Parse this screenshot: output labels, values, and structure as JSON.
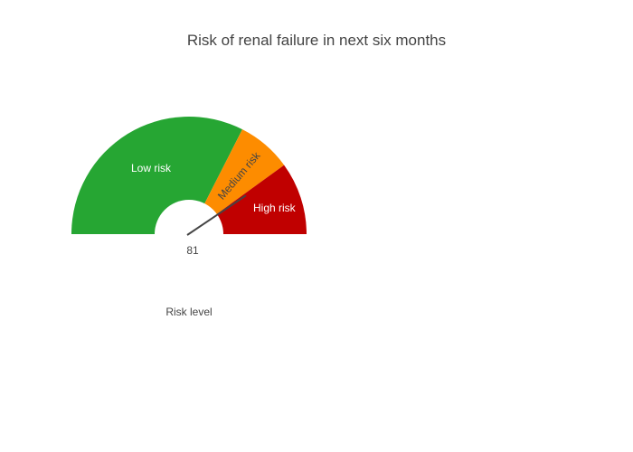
{
  "chart_data": {
    "type": "gauge",
    "title": "Risk of renal failure in next six months",
    "xlabel": "Risk level",
    "value": 81,
    "value_range": [
      0,
      100
    ],
    "segments": [
      {
        "label": "Low risk",
        "from": 0,
        "to": 65,
        "color": "#26a633",
        "label_color": "#ffffff"
      },
      {
        "label": "Medium risk",
        "from": 65,
        "to": 80,
        "color": "#fd8c00",
        "label_color": "#444444"
      },
      {
        "label": "High risk",
        "from": 80,
        "to": 100,
        "color": "#c00000",
        "label_color": "#ffffff"
      }
    ],
    "needle_color": "#444444"
  }
}
